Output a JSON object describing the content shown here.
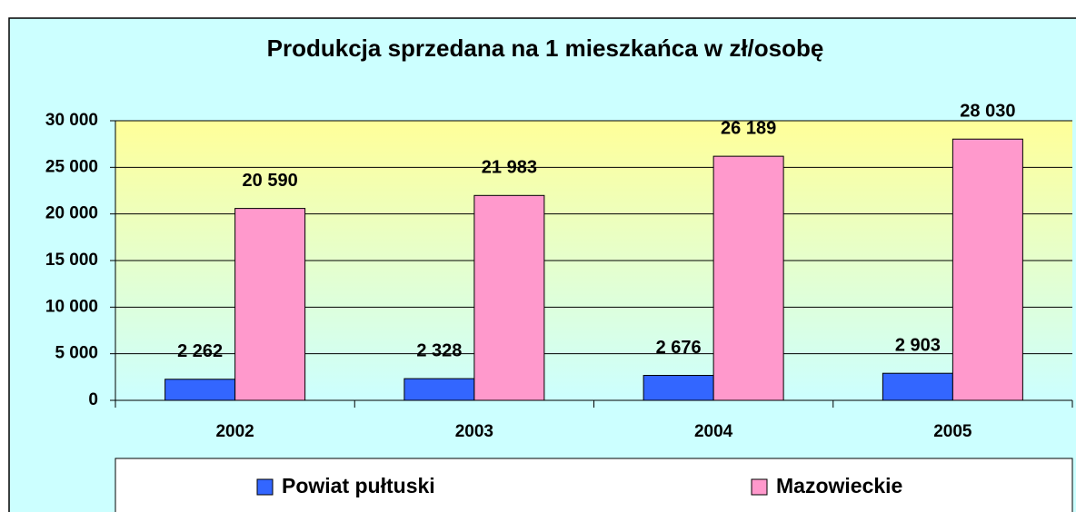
{
  "chart_data": {
    "type": "bar",
    "title": "Produkcja sprzedana na 1 mieszkańca w zł/osobę",
    "categories": [
      "2002",
      "2003",
      "2004",
      "2005"
    ],
    "series": [
      {
        "name": "Powiat pułtuski",
        "color": "#3366ff",
        "values": [
          2262,
          2328,
          2676,
          2903
        ],
        "value_labels": [
          "2 262",
          "2 328",
          "2 676",
          "2 903"
        ]
      },
      {
        "name": "Mazowieckie",
        "color": "#ff99cc",
        "values": [
          20590,
          21983,
          26189,
          28030
        ],
        "value_labels": [
          "20 590",
          "21 983",
          "26 189",
          "28 030"
        ]
      }
    ],
    "ylim": [
      0,
      30000
    ],
    "yticks": [
      0,
      {
        "value": 5000,
        "label": "5 000"
      },
      {
        "value": 10000,
        "label": "10 000"
      },
      {
        "value": 15000,
        "label": "15 000"
      },
      {
        "value": 20000,
        "label": "20 000"
      },
      {
        "value": 25000,
        "label": "25 000"
      },
      {
        "value": 30000,
        "label": "30 000"
      }
    ],
    "grid": true,
    "legend": "bottom"
  }
}
